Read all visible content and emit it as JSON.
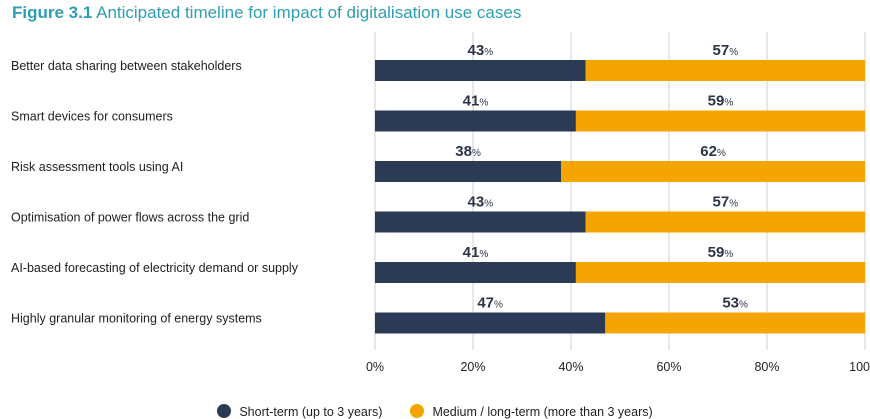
{
  "figure": {
    "number": "Figure 3.1",
    "title": "Anticipated timeline for impact of digitalisation use cases"
  },
  "chart_data": {
    "type": "bar",
    "orientation": "horizontal",
    "stacked": true,
    "categories": [
      "Better data sharing between stakeholders",
      "Smart devices for consumers",
      "Risk assessment tools using AI",
      "Optimisation of power flows across the grid",
      "AI-based forecasting of electricity demand or supply",
      "Highly granular monitoring of energy systems"
    ],
    "series": [
      {
        "name": "Short-term (up to 3 years)",
        "color": "#2b3a55",
        "values": [
          43,
          41,
          38,
          43,
          41,
          47
        ]
      },
      {
        "name": "Medium / long-term (more than 3 years)",
        "color": "#f5a500",
        "values": [
          57,
          59,
          62,
          57,
          59,
          53
        ]
      }
    ],
    "value_suffix": "%",
    "xlim": [
      0,
      100
    ],
    "xticks": [
      "0%",
      "20%",
      "40%",
      "60%",
      "80%",
      "100"
    ],
    "grid": true,
    "legend_position": "bottom"
  }
}
